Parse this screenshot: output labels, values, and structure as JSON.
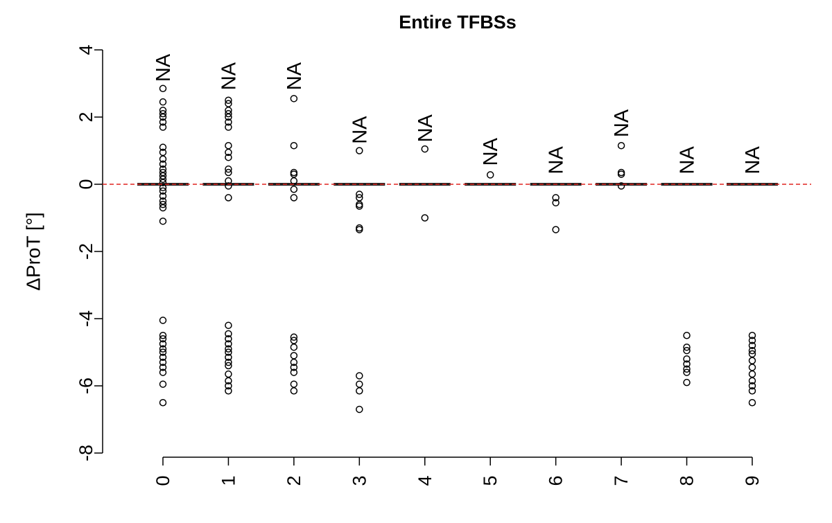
{
  "chart_data": {
    "type": "box",
    "title": "Entire TFBSs",
    "ylabel": "ΔProT [°]",
    "categories": [
      "0",
      "1",
      "2",
      "3",
      "4",
      "5",
      "6",
      "7",
      "8",
      "9"
    ],
    "q1": [
      0,
      0,
      0,
      0,
      0,
      0,
      0,
      0,
      0,
      0
    ],
    "median": [
      0,
      0,
      0,
      0,
      0,
      0,
      0,
      0,
      0,
      0
    ],
    "q3": [
      0,
      0,
      0,
      0,
      0,
      0,
      0,
      0,
      0,
      0
    ],
    "outliers": [
      [
        2.85,
        2.45,
        2.2,
        2.1,
        2.0,
        1.85,
        1.7,
        1.1,
        0.95,
        0.75,
        0.6,
        0.45,
        0.35,
        0.25,
        0.15,
        0.05,
        -0.1,
        -0.2,
        -0.35,
        -0.5,
        -0.6,
        -0.7,
        -1.1,
        -4.05,
        -4.5,
        -4.6,
        -4.75,
        -4.9,
        -5.0,
        -5.15,
        -5.3,
        -5.45,
        -5.6,
        -5.95,
        -6.5
      ],
      [
        2.5,
        2.4,
        2.2,
        2.1,
        2.0,
        1.85,
        1.7,
        1.15,
        0.95,
        0.8,
        0.45,
        0.35,
        0.1,
        -0.05,
        -0.4,
        -4.2,
        -4.45,
        -4.6,
        -4.75,
        -4.9,
        -5.0,
        -5.15,
        -5.3,
        -5.4,
        -5.65,
        -5.85,
        -6.0,
        -6.15
      ],
      [
        2.55,
        1.15,
        0.35,
        0.3,
        0.1,
        -0.15,
        -0.4,
        -4.55,
        -4.65,
        -4.85,
        -5.1,
        -5.3,
        -5.45,
        -5.6,
        -5.95,
        -6.15
      ],
      [
        1.0,
        -0.3,
        -0.4,
        -0.6,
        -0.65,
        -1.3,
        -1.35,
        -5.7,
        -5.95,
        -6.15,
        -6.7
      ],
      [
        1.05,
        -1.0
      ],
      [
        0.28
      ],
      [
        -0.4,
        -0.55,
        -1.35
      ],
      [
        1.15,
        0.35,
        0.3,
        -0.05
      ],
      [
        -4.5,
        -4.85,
        -4.95,
        -5.2,
        -5.35,
        -5.5,
        -5.6,
        -5.9
      ],
      [
        -4.5,
        -4.65,
        -4.8,
        -4.95,
        -5.05,
        -5.25,
        -5.45,
        -5.65,
        -5.85,
        -6.0,
        -6.15,
        -6.5
      ]
    ],
    "annotations": [
      {
        "text": "NA",
        "x": 0,
        "y": 3.05
      },
      {
        "text": "NA",
        "x": 1,
        "y": 2.8
      },
      {
        "text": "NA",
        "x": 2,
        "y": 2.8
      },
      {
        "text": "NA",
        "x": 3,
        "y": 1.2
      },
      {
        "text": "NA",
        "x": 4,
        "y": 1.25
      },
      {
        "text": "NA",
        "x": 5,
        "y": 0.55
      },
      {
        "text": "NA",
        "x": 6,
        "y": 0.3
      },
      {
        "text": "NA",
        "x": 7,
        "y": 1.4
      },
      {
        "text": "NA",
        "x": 8,
        "y": 0.3
      },
      {
        "text": "NA",
        "x": 9,
        "y": 0.3
      }
    ],
    "hline": 0,
    "hline_color": "#e0241f",
    "color": "#000000",
    "ylim": [
      -8,
      4
    ],
    "yticks": [
      -8,
      -6,
      -4,
      -2,
      0,
      2,
      4
    ]
  }
}
